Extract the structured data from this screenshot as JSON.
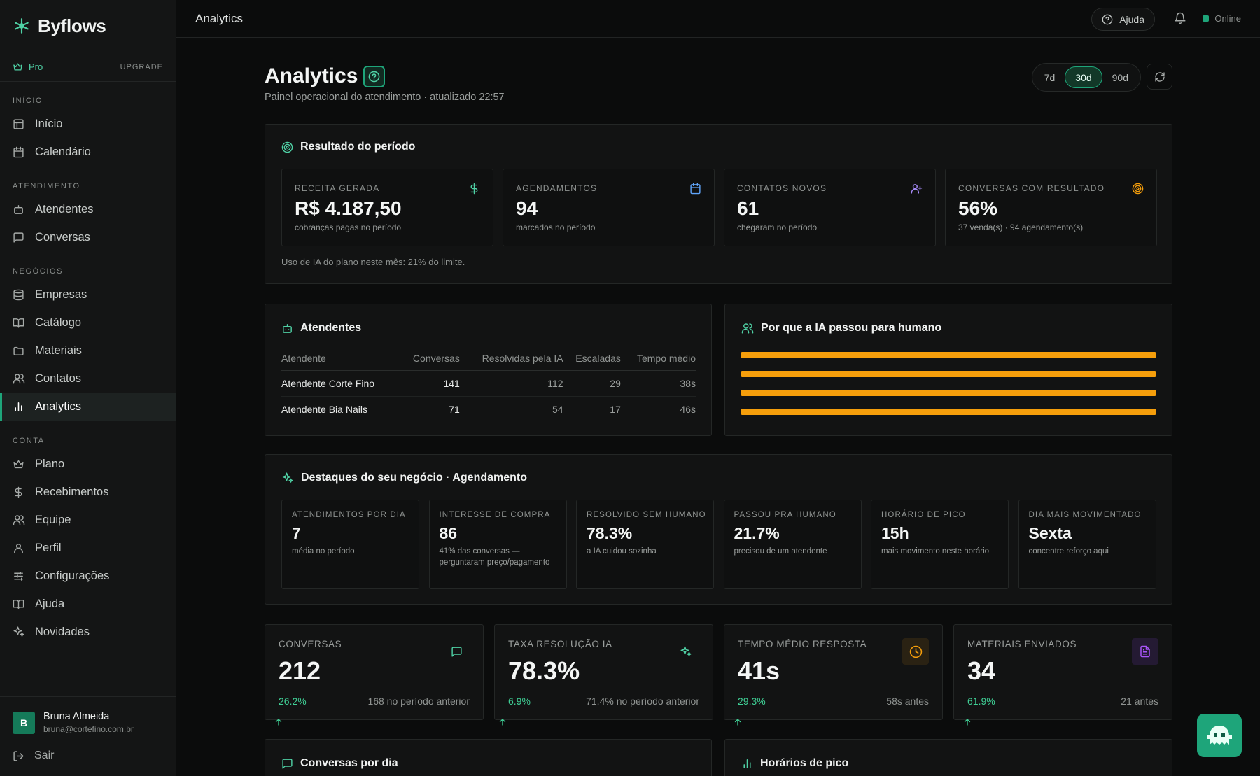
{
  "brand": {
    "name": "Byflows"
  },
  "plan": {
    "name": "Pro",
    "upgrade_label": "UPGRADE"
  },
  "sidebar": {
    "sections": [
      {
        "title": "INÍCIO",
        "items": [
          {
            "label": "Início",
            "icon": "layout-icon"
          },
          {
            "label": "Calendário",
            "icon": "calendar-icon"
          }
        ]
      },
      {
        "title": "ATENDIMENTO",
        "items": [
          {
            "label": "Atendentes",
            "icon": "bot-icon"
          },
          {
            "label": "Conversas",
            "icon": "chat-icon"
          }
        ]
      },
      {
        "title": "NEGÓCIOS",
        "items": [
          {
            "label": "Empresas",
            "icon": "database-icon"
          },
          {
            "label": "Catálogo",
            "icon": "book-icon"
          },
          {
            "label": "Materiais",
            "icon": "folder-icon"
          },
          {
            "label": "Contatos",
            "icon": "users-icon"
          },
          {
            "label": "Analytics",
            "icon": "bar-chart-icon",
            "active": true
          }
        ]
      },
      {
        "title": "CONTA",
        "items": [
          {
            "label": "Plano",
            "icon": "crown-icon"
          },
          {
            "label": "Recebimentos",
            "icon": "dollar-icon"
          },
          {
            "label": "Equipe",
            "icon": "users-icon"
          },
          {
            "label": "Perfil",
            "icon": "user-icon"
          },
          {
            "label": "Configurações",
            "icon": "sliders-icon"
          },
          {
            "label": "Ajuda",
            "icon": "book-icon"
          },
          {
            "label": "Novidades",
            "icon": "sparkles-icon"
          }
        ]
      }
    ]
  },
  "user": {
    "initial": "B",
    "name": "Bruna Almeida",
    "email": "bruna@cortefino.com.br",
    "logout_label": "Sair"
  },
  "topbar": {
    "title": "Analytics",
    "help_label": "Ajuda",
    "status": "Online"
  },
  "page": {
    "title": "Analytics",
    "subtitle": "Painel operacional do atendimento · atualizado 22:57",
    "ranges": [
      "7d",
      "30d",
      "90d"
    ],
    "active_range": "30d"
  },
  "period": {
    "title": "Resultado do período",
    "kpis": [
      {
        "label": "RECEITA GERADA",
        "value": "R$ 4.187,50",
        "note": "cobranças pagas no período",
        "icon": "dollar-icon"
      },
      {
        "label": "AGENDAMENTOS",
        "value": "94",
        "note": "marcados no período",
        "icon": "calendar-icon"
      },
      {
        "label": "CONTATOS NOVOS",
        "value": "61",
        "note": "chegaram no período",
        "icon": "user-plus-icon"
      },
      {
        "label": "CONVERSAS COM RESULTADO",
        "value": "56%",
        "note": "37 venda(s) · 94 agendamento(s)",
        "icon": "target-icon"
      }
    ],
    "usage_note": "Uso de IA do plano neste mês: 21% do limite."
  },
  "agents": {
    "title": "Atendentes",
    "columns": [
      "Atendente",
      "Conversas",
      "Resolvidas pela IA",
      "Escaladas",
      "Tempo médio"
    ],
    "rows": [
      [
        "Atendente Corte Fino",
        "141",
        "112",
        "29",
        "38s"
      ],
      [
        "Atendente Bia Nails",
        "71",
        "54",
        "17",
        "46s"
      ]
    ]
  },
  "handoff": {
    "title": "Por que a IA passou para humano",
    "bar_color": "#f59e0b",
    "bars": 4
  },
  "highlights": {
    "title": "Destaques do seu negócio · Agendamento",
    "items": [
      {
        "label": "ATENDIMENTOS POR DIA",
        "value": "7",
        "note": "média no período"
      },
      {
        "label": "INTERESSE DE COMPRA",
        "value": "86",
        "note": "41% das conversas — perguntaram preço/pagamento"
      },
      {
        "label": "RESOLVIDO SEM HUMANO",
        "value": "78.3%",
        "note": "a IA cuidou sozinha"
      },
      {
        "label": "PASSOU PRA HUMANO",
        "value": "21.7%",
        "note": "precisou de um atendente"
      },
      {
        "label": "HORÁRIO DE PICO",
        "value": "15h",
        "note": "mais movimento neste horário"
      },
      {
        "label": "DIA MAIS MOVIMENTADO",
        "value": "Sexta",
        "note": "concentre reforço aqui"
      }
    ]
  },
  "stats": [
    {
      "label": "CONVERSAS",
      "value": "212",
      "delta": "26.2%",
      "previous": "168 no período anterior",
      "icon": "chat-icon",
      "icon_color": "#4fd1a5"
    },
    {
      "label": "TAXA RESOLUÇÃO IA",
      "value": "78.3%",
      "delta": "6.9%",
      "previous": "71.4% no período anterior",
      "icon": "sparkles-icon",
      "icon_color": "#4fd1a5"
    },
    {
      "label": "TEMPO MÉDIO RESPOSTA",
      "value": "41s",
      "delta": "29.3%",
      "previous": "58s antes",
      "icon": "clock-icon",
      "icon_color": "#f59e0b"
    },
    {
      "label": "MATERIAIS ENVIADOS",
      "value": "34",
      "delta": "61.9%",
      "previous": "21 antes",
      "icon": "file-icon",
      "icon_color": "#a855f7"
    }
  ],
  "bottom": {
    "daily_title": "Conversas por dia",
    "peak_title": "Horários de pico"
  }
}
